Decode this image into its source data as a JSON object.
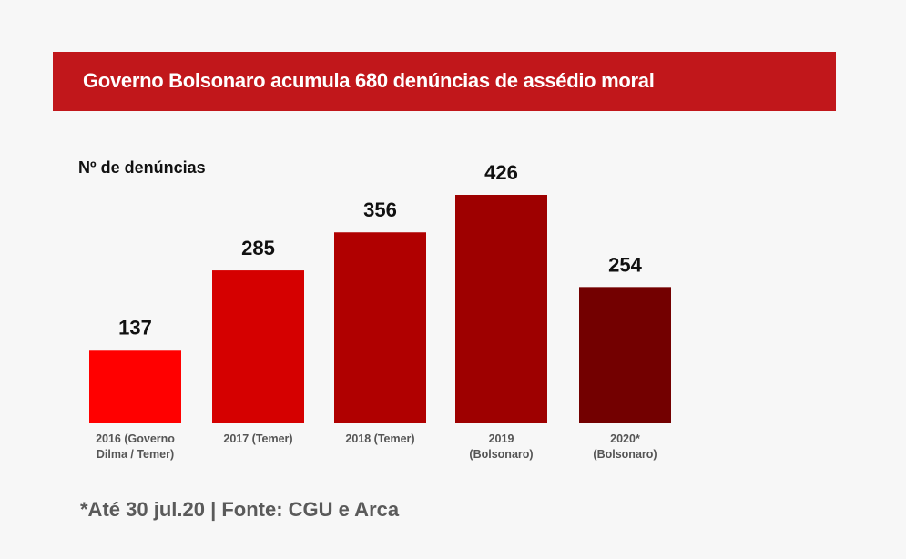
{
  "banner": {
    "title": "Governo Bolsonaro acumula 680 denúncias de assédio moral",
    "color": "#c1171b"
  },
  "footnote": "*Até 30 jul.20 | Fonte: CGU e Arca",
  "chart_data": {
    "type": "bar",
    "title": "Governo Bolsonaro acumula 680 denúncias de assédio moral",
    "xlabel": "",
    "ylabel": "Nº de denúncias",
    "ylim": [
      0,
      426
    ],
    "grid": false,
    "legend": "none",
    "categories": [
      [
        "2016 (Governo",
        "Dilma / Temer)"
      ],
      [
        "2017 (Temer)"
      ],
      [
        "2018 (Temer)"
      ],
      [
        "2019",
        "(Bolsonaro)"
      ],
      [
        "2020*",
        "(Bolsonaro)"
      ]
    ],
    "values": [
      137,
      285,
      356,
      426,
      254
    ],
    "colors": [
      "#ff0000",
      "#d50000",
      "#b00000",
      "#9e0000",
      "#730000"
    ],
    "data_labels": [
      "137",
      "285",
      "356",
      "426",
      "254"
    ]
  }
}
